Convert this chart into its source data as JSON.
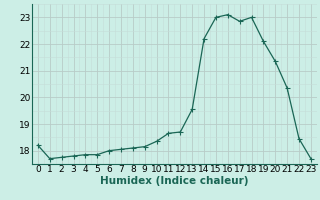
{
  "xlabel": "Humidex (Indice chaleur)",
  "ylabel": "",
  "x_values": [
    0,
    1,
    2,
    3,
    4,
    5,
    6,
    7,
    8,
    9,
    10,
    11,
    12,
    13,
    14,
    15,
    16,
    17,
    18,
    19,
    20,
    21,
    22,
    23
  ],
  "y_values": [
    18.2,
    17.7,
    17.75,
    17.8,
    17.85,
    17.85,
    18.0,
    18.05,
    18.1,
    18.15,
    18.35,
    18.65,
    18.7,
    19.55,
    22.2,
    23.0,
    23.1,
    22.85,
    23.0,
    22.1,
    21.35,
    20.35,
    18.45,
    17.7
  ],
  "line_color": "#1a6655",
  "marker_color": "#1a6655",
  "bg_color": "#cceee6",
  "grid_color": "#b8ccc8",
  "grid_color_minor": "#c5ddd8",
  "ylim": [
    17.5,
    23.5
  ],
  "xlim": [
    -0.5,
    23.5
  ],
  "yticks": [
    18,
    19,
    20,
    21,
    22,
    23
  ],
  "xticks": [
    0,
    1,
    2,
    3,
    4,
    5,
    6,
    7,
    8,
    9,
    10,
    11,
    12,
    13,
    14,
    15,
    16,
    17,
    18,
    19,
    20,
    21,
    22,
    23
  ],
  "tick_label_fontsize": 6.5,
  "xlabel_fontsize": 7.5,
  "linewidth": 0.9,
  "markersize": 2.0
}
